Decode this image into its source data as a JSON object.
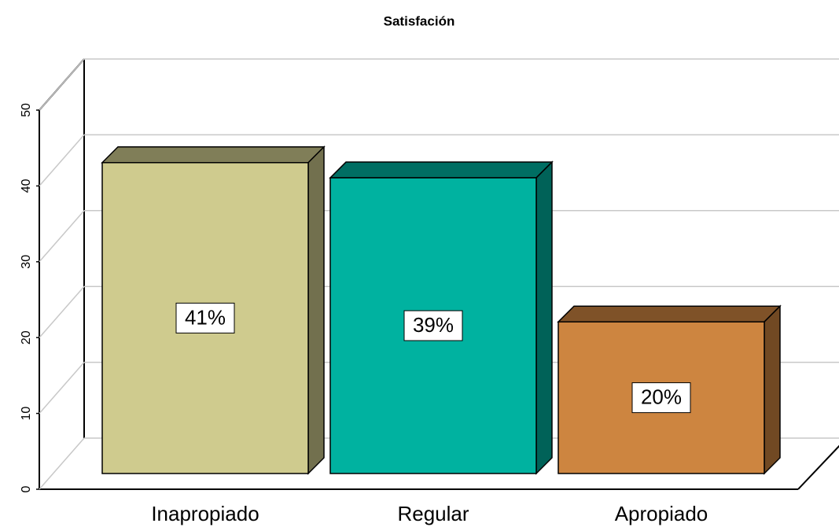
{
  "chart_data": {
    "type": "bar3d",
    "title": "Satisfación",
    "categories": [
      "Inapropiado",
      "Regular",
      "Apropiado"
    ],
    "values": [
      41,
      39,
      20
    ],
    "value_labels": [
      "41%",
      "39%",
      "20%"
    ],
    "colors": [
      "#cfcb8e",
      "#00b2a0",
      "#cd8540"
    ],
    "ylim": [
      0,
      50
    ],
    "yticks": [
      0,
      10,
      20,
      30,
      40,
      50
    ],
    "grid": true
  }
}
